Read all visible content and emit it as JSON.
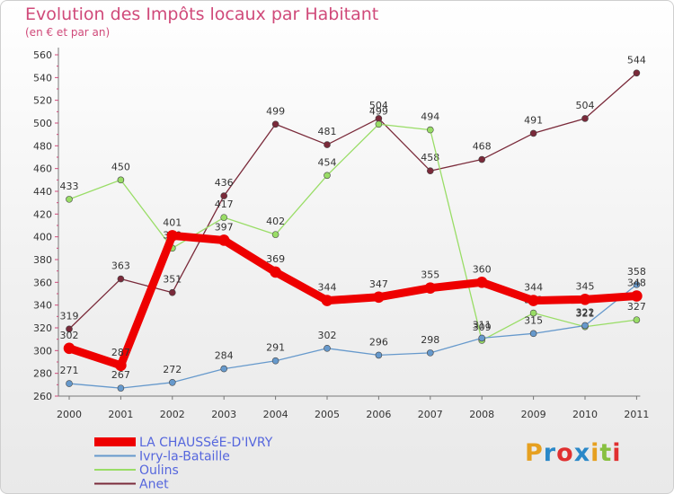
{
  "title": "Evolution des Impôts locaux par Habitant",
  "subtitle": "(en € et par an)",
  "brand": "Proxiti",
  "chart_data": {
    "type": "line",
    "categories": [
      "2000",
      "2001",
      "2002",
      "2003",
      "2004",
      "2005",
      "2006",
      "2007",
      "2008",
      "2009",
      "2010",
      "2011"
    ],
    "ylim": [
      260,
      560
    ],
    "yticks": [
      260,
      280,
      300,
      320,
      340,
      360,
      380,
      400,
      420,
      440,
      460,
      480,
      500,
      520,
      540,
      560
    ],
    "grid": false,
    "legend_position": "bottom-left",
    "series": [
      {
        "name": "LA CHAUSSéE-D'IVRY",
        "color": "#ee0000",
        "thick": true,
        "values": [
          302,
          287,
          401,
          397,
          369,
          344,
          347,
          355,
          360,
          344,
          345,
          348
        ]
      },
      {
        "name": "Ivry-la-Bataille",
        "color": "#6699cc",
        "thick": false,
        "values": [
          271,
          267,
          272,
          284,
          291,
          302,
          296,
          298,
          311,
          315,
          322,
          358
        ]
      },
      {
        "name": "Oulins",
        "color": "#99dd66",
        "thick": false,
        "values": [
          433,
          450,
          390,
          417,
          402,
          454,
          499,
          494,
          309,
          333,
          321,
          327
        ]
      },
      {
        "name": "Anet",
        "color": "#7a2a3a",
        "thick": false,
        "values": [
          319,
          363,
          351,
          436,
          499,
          481,
          504,
          458,
          468,
          491,
          504,
          544
        ]
      }
    ]
  }
}
